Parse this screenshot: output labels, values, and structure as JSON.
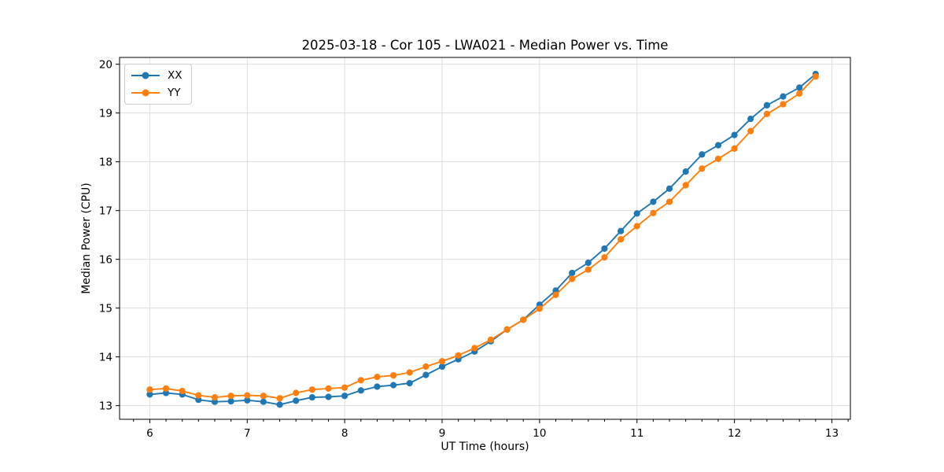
{
  "legend": {
    "items": [
      {
        "label": "XX",
        "color": "#1f77b4"
      },
      {
        "label": "YY",
        "color": "#ff7f0e"
      }
    ],
    "position": "upper left"
  },
  "chart_data": {
    "type": "line",
    "title": "2025-03-18 - Cor 105 - LWA021 - Median Power vs. Time",
    "xlabel": "UT Time (hours)",
    "ylabel": "Median Power (CPU)",
    "grid": true,
    "marker": "circle",
    "xlim": [
      5.69,
      13.19
    ],
    "ylim": [
      12.72,
      20.14
    ],
    "x_major_ticks": [
      6,
      7,
      8,
      9,
      10,
      11,
      12,
      13
    ],
    "x_minor_tick_step": 0.1666667,
    "y_major_ticks": [
      13,
      14,
      15,
      16,
      17,
      18,
      19,
      20
    ],
    "x": [
      6.0,
      6.1667,
      6.3333,
      6.5,
      6.6667,
      6.8333,
      7.0,
      7.1667,
      7.3333,
      7.5,
      7.6667,
      7.8333,
      8.0,
      8.1667,
      8.3333,
      8.5,
      8.6667,
      8.8333,
      9.0,
      9.1667,
      9.3333,
      9.5,
      9.6667,
      9.8333,
      10.0,
      10.1667,
      10.3333,
      10.5,
      10.6667,
      10.8333,
      11.0,
      11.1667,
      11.3333,
      11.5,
      11.6667,
      11.8333,
      12.0,
      12.1667,
      12.3333,
      12.5,
      12.6667,
      12.8333
    ],
    "series": [
      {
        "name": "XX",
        "color": "#1f77b4",
        "values": [
          13.23,
          13.26,
          13.23,
          13.12,
          13.08,
          13.09,
          13.11,
          13.08,
          13.02,
          13.1,
          13.17,
          13.18,
          13.2,
          13.31,
          13.39,
          13.42,
          13.46,
          13.63,
          13.8,
          13.95,
          14.11,
          14.32,
          14.56,
          14.76,
          15.07,
          15.36,
          15.72,
          15.93,
          16.22,
          16.58,
          16.94,
          17.18,
          17.45,
          17.8,
          18.15,
          18.34,
          18.55,
          18.88,
          19.16,
          19.34,
          19.52,
          19.8
        ]
      },
      {
        "name": "YY",
        "color": "#ff7f0e",
        "values": [
          13.33,
          13.35,
          13.3,
          13.21,
          13.17,
          13.2,
          13.21,
          13.2,
          13.15,
          13.26,
          13.33,
          13.35,
          13.37,
          13.52,
          13.59,
          13.62,
          13.68,
          13.8,
          13.91,
          14.03,
          14.18,
          14.35,
          14.56,
          14.76,
          14.99,
          15.27,
          15.6,
          15.79,
          16.04,
          16.41,
          16.68,
          16.95,
          17.18,
          17.52,
          17.86,
          18.06,
          18.27,
          18.63,
          18.98,
          19.18,
          19.4,
          19.75
        ]
      }
    ],
    "style": {
      "grid_color": "#dedede",
      "spine_color": "#000000",
      "tick_color": "#000000",
      "background": "#ffffff"
    }
  }
}
